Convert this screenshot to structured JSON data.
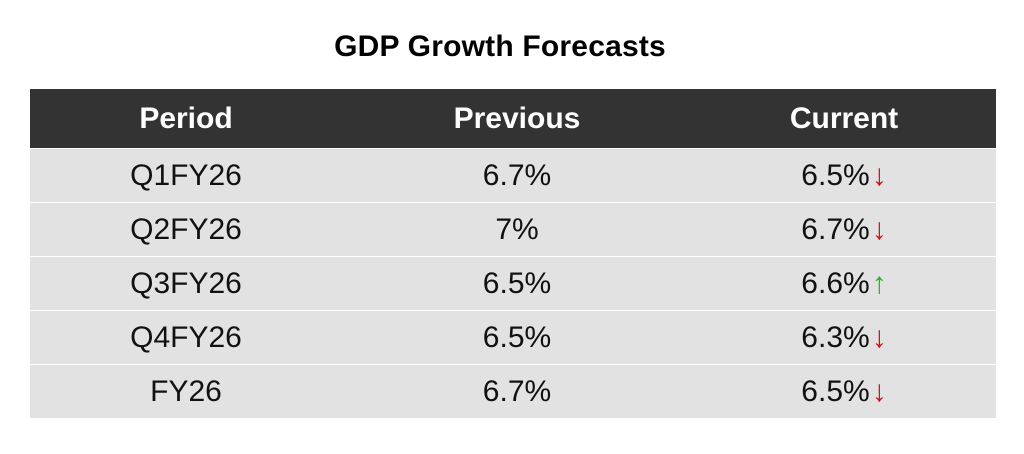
{
  "title": "GDP Growth Forecasts",
  "columns": [
    "Period",
    "Previous",
    "Current"
  ],
  "rows": [
    {
      "period": "Q1FY26",
      "previous": "6.7%",
      "current": "6.5%",
      "trend": "down",
      "trend_glyph": "↓"
    },
    {
      "period": "Q2FY26",
      "previous": "7%",
      "current": "6.7%",
      "trend": "down",
      "trend_glyph": "↓"
    },
    {
      "period": "Q3FY26",
      "previous": "6.5%",
      "current": "6.6%",
      "trend": "up",
      "trend_glyph": "↑"
    },
    {
      "period": "Q4FY26",
      "previous": "6.5%",
      "current": "6.3%",
      "trend": "down",
      "trend_glyph": "↓"
    },
    {
      "period": "FY26",
      "previous": "6.7%",
      "current": "6.5%",
      "trend": "down",
      "trend_glyph": "↓"
    }
  ],
  "colors": {
    "header_bg": "#333333",
    "row_bg": "#e2e2e2",
    "down_arrow": "#d0121c",
    "up_arrow": "#27b32d"
  },
  "icons": {
    "down": "arrow-down-icon",
    "up": "arrow-up-icon"
  }
}
